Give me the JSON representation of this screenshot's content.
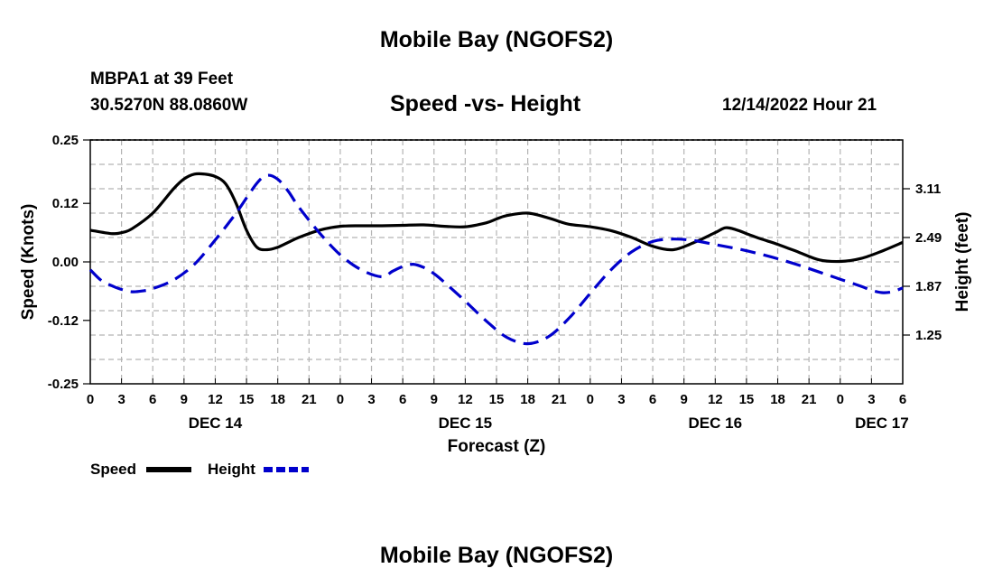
{
  "header": {
    "title": "Mobile Bay (NGOFS2)",
    "station": "MBPA1 at 39 Feet",
    "coords": "30.5270N  88.0860W",
    "subtitle": "Speed -vs- Height",
    "run_time": "12/14/2022 Hour 21"
  },
  "footer": {
    "title": "Mobile Bay (NGOFS2)"
  },
  "chart_data": {
    "type": "line",
    "title": "Speed -vs- Height",
    "xlabel": "Forecast (Z)",
    "ylabel_left": "Speed (Knots)",
    "ylabel_right": "Height (feet)",
    "x_range_hours": [
      0,
      78
    ],
    "x_ticks": [
      "0",
      "3",
      "6",
      "9",
      "12",
      "15",
      "18",
      "21",
      "0",
      "3",
      "6",
      "9",
      "12",
      "15",
      "18",
      "21",
      "0",
      "3",
      "6",
      "9",
      "12",
      "15",
      "18",
      "21",
      "0",
      "3",
      "6"
    ],
    "date_labels": [
      {
        "label": "DEC 14",
        "hour": 12
      },
      {
        "label": "DEC 15",
        "hour": 36
      },
      {
        "label": "DEC 16",
        "hour": 60
      },
      {
        "label": "DEC 17",
        "hour": 76
      }
    ],
    "y_left": {
      "min": -0.25,
      "max": 0.25,
      "ticks": [
        "-0.25",
        "-0.12",
        "0.00",
        "0.12",
        "0.25"
      ]
    },
    "y_right": {
      "min": 0.63,
      "max": 3.73,
      "ticks": [
        "1.25",
        "1.87",
        "2.49",
        "3.11"
      ]
    },
    "grid": true,
    "legend": {
      "position": "bottom-left",
      "items": [
        {
          "label": "Speed",
          "style": "solid",
          "color": "#000000"
        },
        {
          "label": "Height",
          "style": "dashed",
          "color": "#0000cc"
        }
      ]
    },
    "series": [
      {
        "name": "Speed",
        "axis": "left",
        "color": "#000000",
        "style": "solid",
        "x": [
          0,
          2,
          3,
          4,
          6,
          8,
          9,
          10,
          11,
          12,
          13,
          14,
          15,
          16,
          17,
          18,
          19,
          20,
          22,
          24,
          26,
          28,
          30,
          32,
          34,
          36,
          38,
          39,
          40,
          42,
          44,
          45,
          46,
          48,
          50,
          52,
          54,
          56,
          58,
          60,
          61,
          62,
          63,
          64,
          65,
          66,
          68,
          70,
          72,
          74,
          76,
          78
        ],
        "y": [
          0.065,
          0.058,
          0.06,
          0.068,
          0.1,
          0.15,
          0.17,
          0.18,
          0.18,
          0.175,
          0.16,
          0.12,
          0.065,
          0.03,
          0.025,
          0.03,
          0.04,
          0.05,
          0.065,
          0.073,
          0.074,
          0.074,
          0.075,
          0.076,
          0.073,
          0.072,
          0.08,
          0.088,
          0.095,
          0.1,
          0.09,
          0.083,
          0.077,
          0.072,
          0.064,
          0.05,
          0.032,
          0.025,
          0.04,
          0.06,
          0.07,
          0.066,
          0.058,
          0.05,
          0.043,
          0.036,
          0.02,
          0.004,
          0.001,
          0.007,
          0.022,
          0.04
        ]
      },
      {
        "name": "Height",
        "axis": "right",
        "color": "#0000cc",
        "style": "dashed",
        "x": [
          0,
          1,
          2,
          3,
          4,
          5,
          6,
          8,
          10,
          12,
          14,
          16,
          17,
          18,
          19,
          20,
          22,
          24,
          26,
          28,
          29,
          30,
          31,
          32,
          33,
          34,
          36,
          38,
          40,
          42,
          44,
          46,
          48,
          50,
          52,
          54,
          56,
          58,
          60,
          62,
          64,
          66,
          68,
          70,
          72,
          74,
          75,
          76,
          77,
          78
        ],
        "y": [
          2.08,
          1.95,
          1.88,
          1.83,
          1.8,
          1.81,
          1.84,
          1.95,
          2.15,
          2.46,
          2.8,
          3.18,
          3.28,
          3.23,
          3.08,
          2.88,
          2.55,
          2.27,
          2.08,
          1.99,
          2.06,
          2.12,
          2.15,
          2.11,
          2.03,
          1.92,
          1.68,
          1.43,
          1.22,
          1.14,
          1.23,
          1.47,
          1.78,
          2.08,
          2.31,
          2.44,
          2.47,
          2.45,
          2.4,
          2.35,
          2.29,
          2.22,
          2.14,
          2.05,
          1.96,
          1.87,
          1.82,
          1.79,
          1.8,
          1.85
        ]
      }
    ]
  }
}
